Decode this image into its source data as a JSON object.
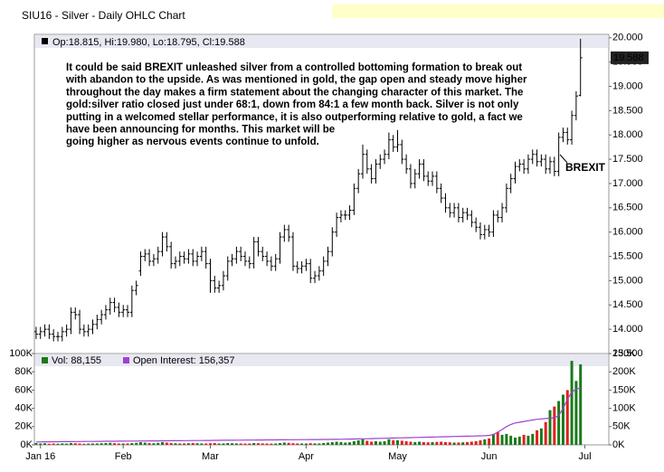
{
  "chart_data": [
    {
      "type": "ohlc",
      "title": "SIU16 - Silver - Daily OHLC Chart",
      "legend_text": "Op:18.815, Hi:19.980, Lo:18.795, Cl:19.588",
      "last_label": "19.588",
      "annotation": [
        "It could be said BREXIT unleashed silver from a controlled bottoming formation to break out",
        "with abandon to the upside.  As was mentioned in gold, the gap open and steady move higher",
        "throughout the day makes a firm statement about the changing character of this market.  The",
        "gold:silver ratio closed just under 68:1, down from 84:1 a few month back.  Silver is not only",
        "putting in a welcomed stellar performance, it is also outperforming relative to gold, a fact we",
        "have been announcing for months.  This market will be",
        "going higher as nervous events continue to unfold."
      ],
      "marker": "BREXIT",
      "color": "#000000",
      "xlim": [
        -0.4,
        131.5
      ],
      "ylim": [
        13.5,
        20.07
      ],
      "yticks": [
        {
          "value": 13.5,
          "label": "13.500"
        },
        {
          "value": 14,
          "label": "14.000"
        },
        {
          "value": 14.5,
          "label": "14.500"
        },
        {
          "value": 15,
          "label": "15.000"
        },
        {
          "value": 15.5,
          "label": "15.500"
        },
        {
          "value": 16,
          "label": "16.000"
        },
        {
          "value": 16.5,
          "label": "16.500"
        },
        {
          "value": 17,
          "label": "17.000"
        },
        {
          "value": 17.5,
          "label": "17.500"
        },
        {
          "value": 18,
          "label": "18.000"
        },
        {
          "value": 18.5,
          "label": "18.500"
        },
        {
          "value": 19,
          "label": "19.000"
        },
        {
          "value": 19.5,
          "label": "19.500"
        },
        {
          "value": 20,
          "label": "20.000"
        }
      ],
      "open": [
        13.95,
        13.9,
        13.95,
        14.0,
        13.9,
        13.85,
        13.85,
        13.95,
        14.0,
        14.35,
        14.3,
        14.0,
        13.95,
        14.0,
        14.1,
        14.2,
        14.3,
        14.4,
        14.55,
        14.45,
        14.35,
        14.4,
        14.35,
        14.8,
        15.2,
        15.5,
        15.55,
        15.4,
        15.45,
        15.6,
        15.9,
        15.7,
        15.35,
        15.4,
        15.5,
        15.45,
        15.55,
        15.4,
        15.5,
        15.6,
        15.35,
        15.0,
        14.85,
        14.9,
        15.1,
        15.4,
        15.45,
        15.6,
        15.5,
        15.4,
        15.35,
        15.8,
        15.6,
        15.5,
        15.4,
        15.3,
        15.45,
        15.9,
        16.05,
        15.9,
        15.3,
        15.25,
        15.3,
        15.35,
        15.05,
        15.1,
        15.2,
        15.4,
        15.6,
        16.0,
        16.3,
        16.35,
        16.35,
        16.45,
        16.9,
        17.2,
        17.6,
        17.3,
        17.1,
        17.4,
        17.5,
        17.6,
        17.9,
        17.75,
        17.8,
        17.5,
        17.3,
        17.0,
        17.2,
        17.4,
        17.15,
        17.05,
        17.15,
        16.9,
        16.7,
        16.5,
        16.4,
        16.5,
        16.3,
        16.4,
        16.35,
        16.2,
        16.1,
        15.95,
        16.05,
        16.0,
        16.35,
        16.3,
        16.5,
        16.9,
        17.1,
        17.35,
        17.4,
        17.3,
        17.5,
        17.6,
        17.45,
        17.5,
        17.3,
        17.45,
        17.25,
        17.95,
        18.05,
        17.9,
        18.4,
        18.815
      ],
      "high": [
        14.05,
        14.05,
        14.1,
        14.1,
        14.0,
        13.95,
        14.05,
        14.1,
        14.45,
        14.45,
        14.4,
        14.1,
        14.1,
        14.2,
        14.3,
        14.4,
        14.5,
        14.65,
        14.65,
        14.55,
        14.5,
        14.5,
        14.9,
        15.0,
        15.6,
        15.65,
        15.65,
        15.55,
        15.7,
        16.0,
        16.0,
        15.8,
        15.5,
        15.6,
        15.6,
        15.65,
        15.65,
        15.6,
        15.7,
        15.7,
        15.45,
        15.1,
        15.0,
        15.2,
        15.5,
        15.55,
        15.7,
        15.7,
        15.6,
        15.5,
        15.9,
        15.9,
        15.7,
        15.6,
        15.5,
        15.55,
        16.0,
        16.15,
        16.15,
        16.0,
        15.4,
        15.4,
        15.45,
        15.45,
        15.2,
        15.3,
        15.5,
        15.7,
        16.1,
        16.4,
        16.45,
        16.45,
        16.55,
        17.0,
        17.3,
        17.8,
        17.7,
        17.4,
        17.5,
        17.6,
        17.7,
        18.05,
        18.0,
        18.1,
        17.9,
        17.6,
        17.4,
        17.3,
        17.5,
        17.5,
        17.25,
        17.25,
        17.25,
        17.0,
        16.8,
        16.6,
        16.6,
        16.6,
        16.5,
        16.5,
        16.45,
        16.3,
        16.2,
        16.15,
        16.15,
        16.45,
        16.45,
        16.6,
        17.0,
        17.2,
        17.45,
        17.5,
        17.5,
        17.6,
        17.7,
        17.7,
        17.6,
        17.6,
        17.55,
        17.55,
        18.05,
        18.15,
        18.15,
        18.5,
        18.9,
        19.98
      ],
      "low": [
        13.8,
        13.8,
        13.85,
        13.8,
        13.75,
        13.75,
        13.75,
        13.85,
        13.9,
        14.2,
        13.9,
        13.85,
        13.85,
        13.9,
        14.0,
        14.1,
        14.2,
        14.3,
        14.35,
        14.25,
        14.25,
        14.25,
        14.25,
        14.7,
        15.1,
        15.4,
        15.3,
        15.3,
        15.35,
        15.5,
        15.6,
        15.25,
        15.25,
        15.3,
        15.35,
        15.35,
        15.3,
        15.3,
        15.4,
        15.25,
        14.75,
        14.75,
        14.75,
        14.8,
        15.0,
        15.3,
        15.35,
        15.4,
        15.3,
        15.25,
        15.25,
        15.5,
        15.4,
        15.3,
        15.2,
        15.2,
        15.35,
        15.8,
        15.8,
        15.2,
        15.15,
        15.15,
        15.2,
        14.95,
        14.95,
        15.0,
        15.1,
        15.3,
        15.5,
        15.9,
        16.2,
        16.25,
        16.25,
        16.35,
        16.8,
        17.1,
        17.2,
        17.0,
        17.0,
        17.3,
        17.4,
        17.5,
        17.65,
        17.65,
        17.4,
        17.2,
        16.9,
        16.9,
        17.1,
        17.05,
        16.95,
        16.95,
        16.8,
        16.6,
        16.4,
        16.3,
        16.3,
        16.2,
        16.2,
        16.25,
        16.1,
        16.0,
        15.85,
        15.85,
        15.9,
        15.9,
        16.2,
        16.2,
        16.4,
        16.8,
        17.0,
        17.25,
        17.2,
        17.2,
        17.4,
        17.35,
        17.35,
        17.2,
        17.2,
        17.15,
        17.15,
        17.85,
        17.8,
        17.8,
        18.3,
        18.795
      ],
      "close": [
        13.9,
        13.95,
        14.0,
        13.9,
        13.85,
        13.85,
        13.95,
        14.0,
        14.35,
        14.3,
        14.0,
        13.95,
        14.0,
        14.1,
        14.2,
        14.3,
        14.4,
        14.55,
        14.45,
        14.35,
        14.4,
        14.35,
        14.8,
        14.9,
        15.5,
        15.55,
        15.4,
        15.45,
        15.6,
        15.9,
        15.7,
        15.35,
        15.4,
        15.5,
        15.45,
        15.55,
        15.4,
        15.5,
        15.6,
        15.35,
        15.0,
        14.85,
        14.9,
        15.1,
        15.4,
        15.45,
        15.6,
        15.5,
        15.4,
        15.35,
        15.8,
        15.6,
        15.5,
        15.4,
        15.3,
        15.45,
        15.9,
        16.05,
        15.9,
        15.3,
        15.25,
        15.3,
        15.35,
        15.05,
        15.1,
        15.2,
        15.4,
        15.6,
        16.0,
        16.3,
        16.35,
        16.35,
        16.45,
        16.9,
        17.2,
        17.6,
        17.3,
        17.1,
        17.4,
        17.5,
        17.6,
        17.9,
        17.75,
        17.8,
        17.5,
        17.3,
        17.0,
        17.2,
        17.4,
        17.15,
        17.05,
        17.15,
        16.9,
        16.7,
        16.5,
        16.4,
        16.5,
        16.3,
        16.4,
        16.35,
        16.2,
        16.1,
        15.95,
        16.05,
        16.0,
        16.35,
        16.3,
        16.5,
        16.9,
        17.1,
        17.35,
        17.4,
        17.3,
        17.5,
        17.6,
        17.45,
        17.5,
        17.3,
        17.45,
        17.25,
        17.95,
        18.05,
        17.9,
        18.4,
        18.8,
        19.588
      ]
    },
    {
      "type": "bar",
      "up_color": "#1a7a1a",
      "down_color": "#e02020",
      "xlim": [
        -0.4,
        131.5
      ],
      "xticks": [
        {
          "value": 1,
          "label": "Jan 16"
        },
        {
          "value": 20,
          "label": "Feb"
        },
        {
          "value": 40,
          "label": "Mar"
        },
        {
          "value": 62,
          "label": "Apr"
        },
        {
          "value": 83,
          "label": "May"
        },
        {
          "value": 104,
          "label": "Jun"
        },
        {
          "value": 126,
          "label": "Jul"
        }
      ],
      "ylim": [
        0,
        100000
      ],
      "yticks": [
        {
          "value": 0,
          "label": "0K"
        },
        {
          "value": 20000,
          "label": "20K"
        },
        {
          "value": 40000,
          "label": "40K"
        },
        {
          "value": 60000,
          "label": "60K"
        },
        {
          "value": 80000,
          "label": "80K"
        },
        {
          "value": 100000,
          "label": "100K"
        }
      ],
      "y2lim": [
        0,
        250000
      ],
      "y2ticks": [
        {
          "value": 0,
          "label": "0K"
        },
        {
          "value": 50000,
          "label": "50K"
        },
        {
          "value": 100000,
          "label": "100K"
        },
        {
          "value": 150000,
          "label": "150K"
        },
        {
          "value": 200000,
          "label": "200K"
        },
        {
          "value": 250000,
          "label": "250K"
        }
      ],
      "series": [
        {
          "name": "Vol: 88,155",
          "color": "#1a7a1a",
          "values": [
            2000,
            1500,
            1800,
            1200,
            1500,
            1300,
            1600,
            1400,
            2000,
            1800,
            1500,
            1200,
            1400,
            1500,
            1600,
            1800,
            2000,
            2200,
            1800,
            1500,
            1500,
            1600,
            2000,
            2200,
            3000,
            2500,
            2000,
            1800,
            2200,
            3000,
            2500,
            2000,
            1800,
            1500,
            1600,
            1800,
            2000,
            1800,
            1600,
            1500,
            1800,
            2000,
            1500,
            1600,
            2000,
            1800,
            1600,
            1500,
            1400,
            1500,
            2000,
            1800,
            1600,
            1500,
            1400,
            1500,
            2000,
            2500,
            2200,
            1800,
            1600,
            1500,
            1500,
            1800,
            1600,
            1500,
            2000,
            2500,
            3000,
            3500,
            3000,
            2500,
            2800,
            4000,
            5000,
            6000,
            4500,
            3500,
            4000,
            3500,
            4000,
            6000,
            5000,
            5000,
            4500,
            4000,
            3500,
            3000,
            3500,
            3000,
            2800,
            3000,
            3200,
            3500,
            3000,
            2800,
            2500,
            2600,
            2800,
            3000,
            3500,
            4000,
            5000,
            6000,
            7000,
            12000,
            14000,
            11000,
            12000,
            10000,
            8000,
            9000,
            11000,
            10000,
            12000,
            16000,
            18000,
            25000,
            38000,
            42000,
            48000,
            55000,
            60000,
            92000,
            70000,
            88155
          ]
        },
        {
          "name": "Open Interest: 156,357",
          "color": "#a040d0",
          "axis": "y2",
          "values": [
            8000,
            8200,
            8400,
            8500,
            8600,
            8700,
            8800,
            8900,
            9000,
            9100,
            9200,
            9300,
            9400,
            9500,
            9600,
            9700,
            9800,
            9900,
            10000,
            10100,
            10200,
            10300,
            10400,
            10500,
            10600,
            10700,
            10800,
            10900,
            11000,
            11100,
            11200,
            11300,
            11400,
            11500,
            11600,
            11700,
            11800,
            11900,
            12000,
            12100,
            12200,
            12300,
            12400,
            12500,
            12600,
            12700,
            12800,
            12900,
            13000,
            13100,
            13200,
            13300,
            13400,
            13500,
            13600,
            13700,
            13800,
            13900,
            14000,
            14100,
            14200,
            14300,
            14400,
            14500,
            14600,
            14700,
            14800,
            14900,
            15000,
            15200,
            15400,
            15600,
            15800,
            16000,
            16300,
            16600,
            16900,
            17200,
            17500,
            17800,
            18100,
            18400,
            18700,
            19000,
            19300,
            19600,
            19900,
            20200,
            20500,
            20800,
            21100,
            21400,
            21700,
            22000,
            22300,
            22600,
            22900,
            23200,
            23500,
            23800,
            24100,
            24400,
            24700,
            25000,
            26000,
            28000,
            35000,
            42000,
            50000,
            56000,
            60000,
            62000,
            64000,
            66000,
            68000,
            70000,
            71000,
            72000,
            73000,
            74000,
            80000,
            100000,
            125000,
            145000,
            152000,
            156357
          ]
        }
      ]
    }
  ]
}
